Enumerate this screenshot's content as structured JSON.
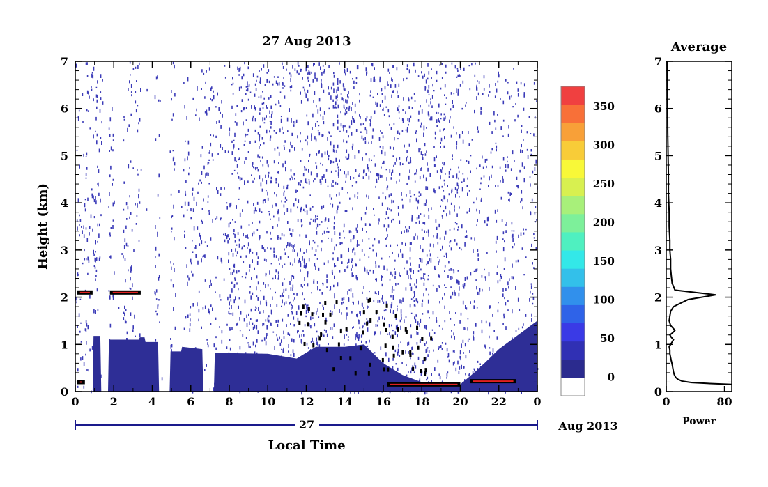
{
  "colors": {
    "background": "#ffffff",
    "axis": "#000000",
    "frame_blue": "#1a1a8c",
    "echo_low": "#2e2e96",
    "echo_dots": "#3b3bb8",
    "layer_black": "#000000",
    "layer_red": "#e02020"
  },
  "chart_data": [
    {
      "type": "heatmap",
      "title": "27 Aug 2013",
      "xlabel": "Local Time",
      "ylabel": "Height (km)",
      "x_ticks": [
        "0",
        "2",
        "4",
        "6",
        "8",
        "10",
        "12",
        "14",
        "16",
        "18",
        "20",
        "22",
        "0"
      ],
      "y_ticks": [
        "0",
        "1",
        "2",
        "3",
        "4",
        "5",
        "6",
        "7"
      ],
      "xlim": [
        0,
        24
      ],
      "ylim": [
        0,
        7
      ],
      "grid": false,
      "date_bar": {
        "day_label": "27",
        "month_label": "Aug 2013"
      },
      "colorbar": {
        "tick_labels": [
          "0",
          "50",
          "100",
          "150",
          "200",
          "250",
          "300",
          "350"
        ],
        "range": [
          -25,
          375
        ],
        "colors": [
          "#ffffff",
          "#2b2b8e",
          "#3030b4",
          "#3a3ae6",
          "#2f63e8",
          "#3190ec",
          "#33c0ea",
          "#33e8e8",
          "#4ff0c0",
          "#7df09a",
          "#a8f07a",
          "#d8f050",
          "#f8f838",
          "#f8cc38",
          "#f8a038",
          "#f87038",
          "#f04040"
        ]
      },
      "low_echo_profile": {
        "description_free_units": "approximate top height (km) of dense low-power echo vs local time (h)",
        "points": [
          [
            0,
            0.0
          ],
          [
            0.9,
            0.0
          ],
          [
            0.95,
            1.18
          ],
          [
            1.3,
            1.18
          ],
          [
            1.35,
            0.0
          ],
          [
            1.7,
            0.0
          ],
          [
            1.75,
            1.1
          ],
          [
            3.3,
            1.1
          ],
          [
            3.35,
            1.15
          ],
          [
            3.6,
            1.15
          ],
          [
            3.65,
            1.05
          ],
          [
            4.3,
            1.05
          ],
          [
            4.35,
            0.0
          ],
          [
            4.9,
            0.0
          ],
          [
            4.95,
            0.85
          ],
          [
            5.5,
            0.85
          ],
          [
            5.55,
            0.95
          ],
          [
            6.6,
            0.9
          ],
          [
            6.65,
            0.0
          ],
          [
            7.2,
            0.0
          ],
          [
            7.25,
            0.82
          ],
          [
            10.0,
            0.8
          ],
          [
            11.5,
            0.7
          ],
          [
            12.5,
            0.95
          ],
          [
            14.0,
            0.95
          ],
          [
            15.0,
            1.0
          ],
          [
            16.0,
            0.6
          ],
          [
            17.0,
            0.35
          ],
          [
            18.0,
            0.2
          ],
          [
            20.0,
            0.15
          ],
          [
            21.0,
            0.5
          ],
          [
            22.0,
            0.9
          ],
          [
            23.0,
            1.2
          ],
          [
            24.0,
            1.5
          ]
        ]
      },
      "layers": [
        {
          "x": [
            0.1,
            0.9
          ],
          "y": 2.1
        },
        {
          "x": [
            1.8,
            3.4
          ],
          "y": 2.1
        },
        {
          "x": [
            0.1,
            0.5
          ],
          "y": 0.2
        },
        {
          "x": [
            16.2,
            20.0
          ],
          "y": 0.15
        },
        {
          "x": [
            20.5,
            22.9
          ],
          "y": 0.22
        }
      ]
    },
    {
      "type": "line",
      "title": "Average",
      "xlabel": "Power",
      "ylabel": "",
      "x_ticks": [
        "0",
        "80"
      ],
      "y_ticks": [
        "0",
        "1",
        "2",
        "3",
        "4",
        "5",
        "6",
        "7"
      ],
      "xlim": [
        0,
        90
      ],
      "ylim": [
        0,
        7
      ],
      "grid": false,
      "series": [
        {
          "x": [
            90,
            60,
            35,
            22,
            16,
            13,
            11,
            10,
            9,
            8,
            7,
            6,
            5,
            5,
            4,
            6,
            8,
            10,
            7,
            5,
            9,
            12,
            6,
            4,
            5,
            6,
            10,
            30,
            68,
            12,
            8,
            7,
            6,
            6,
            5,
            5,
            4,
            4,
            3,
            3
          ],
          "y": [
            0.15,
            0.17,
            0.19,
            0.22,
            0.26,
            0.3,
            0.36,
            0.42,
            0.5,
            0.58,
            0.65,
            0.72,
            0.8,
            0.88,
            0.95,
            1.0,
            1.05,
            1.1,
            1.15,
            1.2,
            1.25,
            1.3,
            1.4,
            1.5,
            1.6,
            1.7,
            1.8,
            1.95,
            2.05,
            2.15,
            2.3,
            2.45,
            2.6,
            2.8,
            3.0,
            3.2,
            3.5,
            3.8,
            4.2,
            4.6
          ]
        }
      ]
    }
  ]
}
